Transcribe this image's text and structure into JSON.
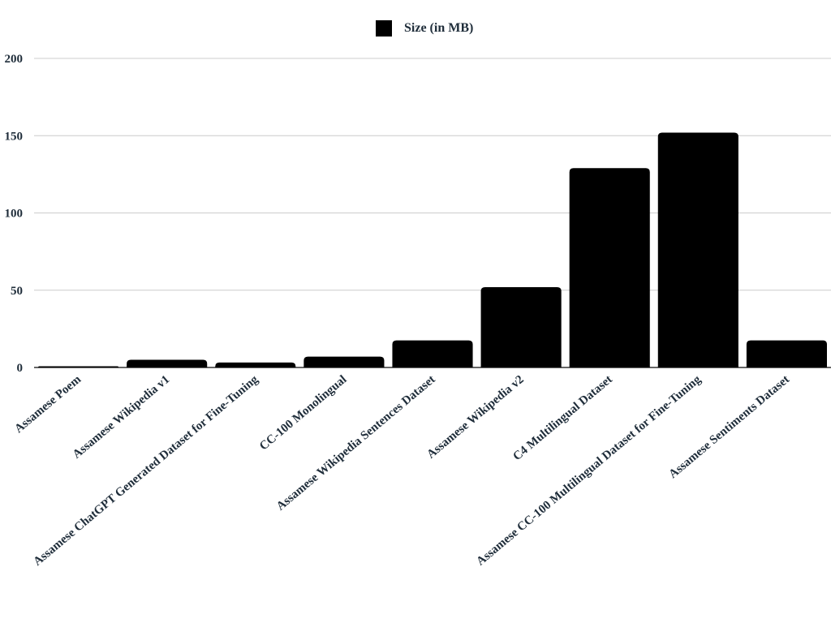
{
  "chart_data": {
    "type": "bar",
    "title": "",
    "xlabel": "",
    "ylabel": "",
    "legend": {
      "position": "top-center",
      "entries": [
        "Size (in MB)"
      ]
    },
    "grid": true,
    "ylim": [
      0,
      200
    ],
    "yticks": [
      "0",
      "50",
      "100",
      "150",
      "200"
    ],
    "categories": [
      "Assamese Poem",
      "Assamese Wikipedia v1",
      "Assamese ChatGPT Generated Dataset for Fine-Tuning",
      "CC-100 Monolingual",
      "Assamese Wikipedia Sentences Dataset",
      "Assamese Wikipedia v2",
      "C4 Multilingual Dataset",
      "Assamese CC-100 Multilingual Dataset for Fine-Tuning",
      "Assamese Sentiments Dataset"
    ],
    "series": [
      {
        "name": "Size (in MB)",
        "color": "#000000",
        "values": [
          0.3,
          5,
          3.2,
          7,
          17.5,
          52,
          129,
          152,
          17.5
        ]
      }
    ]
  }
}
